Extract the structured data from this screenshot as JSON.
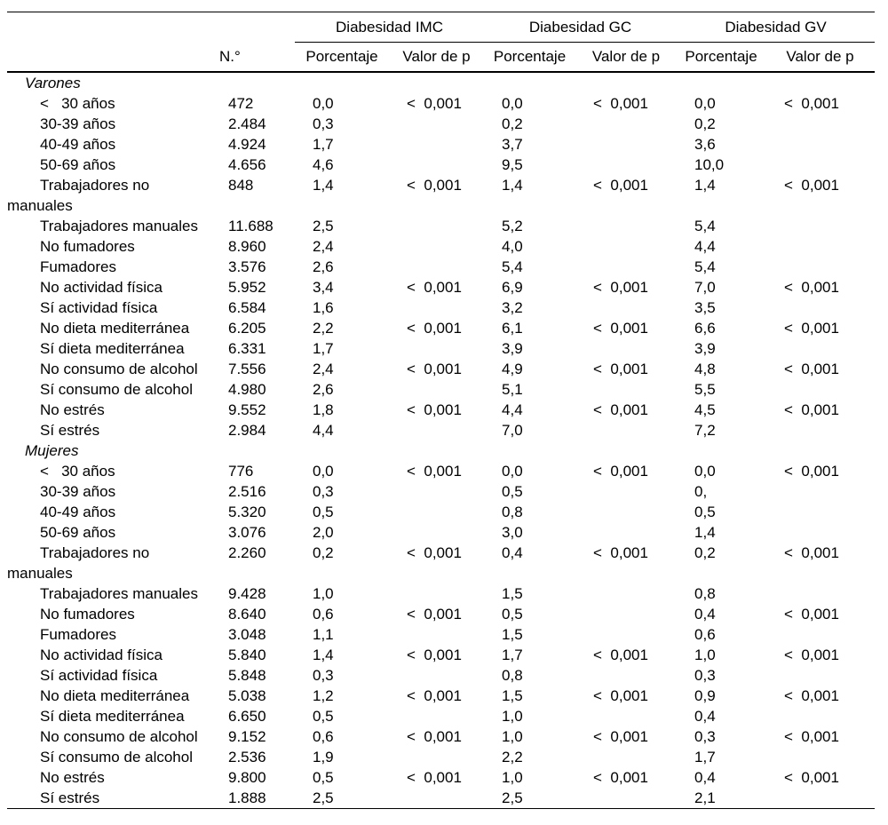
{
  "table": {
    "groups": [
      "Diabesidad IMC",
      "Diabesidad GC",
      "Diabesidad GV"
    ],
    "headers": {
      "n": "N.°",
      "pct": "Porcentaje",
      "p": "Valor de p"
    },
    "rows": [
      {
        "type": "section",
        "label": "Varones",
        "n": "",
        "imc_pct": "",
        "imc_p": "",
        "gc_pct": "",
        "gc_p": "",
        "gv_pct": "",
        "gv_p": ""
      },
      {
        "type": "item",
        "label": "<   30 años",
        "n": "472",
        "imc_pct": "0,0",
        "imc_p": "<  0,001",
        "gc_pct": "0,0",
        "gc_p": "<  0,001",
        "gv_pct": "0,0",
        "gv_p": "<  0,001"
      },
      {
        "type": "item",
        "label": "30-39 años",
        "n": "2.484",
        "imc_pct": "0,3",
        "imc_p": "",
        "gc_pct": "0,2",
        "gc_p": "",
        "gv_pct": "0,2",
        "gv_p": ""
      },
      {
        "type": "item",
        "label": "40-49 años",
        "n": "4.924",
        "imc_pct": "1,7",
        "imc_p": "",
        "gc_pct": "3,7",
        "gc_p": "",
        "gv_pct": "3,6",
        "gv_p": ""
      },
      {
        "type": "item",
        "label": "50-69 años",
        "n": "4.656",
        "imc_pct": "4,6",
        "imc_p": "",
        "gc_pct": "9,5",
        "gc_p": "",
        "gv_pct": "10,0",
        "gv_p": ""
      },
      {
        "type": "item",
        "label": "Trabajadores no manuales",
        "n": "848",
        "imc_pct": "1,4",
        "imc_p": "<  0,001",
        "gc_pct": "1,4",
        "gc_p": "<  0,001",
        "gv_pct": "1,4",
        "gv_p": "<  0,001"
      },
      {
        "type": "item",
        "label": "Trabajadores manuales",
        "n": "11.688",
        "imc_pct": "2,5",
        "imc_p": "",
        "gc_pct": "5,2",
        "gc_p": "",
        "gv_pct": "5,4",
        "gv_p": ""
      },
      {
        "type": "item",
        "label": "No fumadores",
        "n": "8.960",
        "imc_pct": "2,4",
        "imc_p": "",
        "gc_pct": "4,0",
        "gc_p": "",
        "gv_pct": "4,4",
        "gv_p": ""
      },
      {
        "type": "item",
        "label": "Fumadores",
        "n": "3.576",
        "imc_pct": "2,6",
        "imc_p": "",
        "gc_pct": "5,4",
        "gc_p": "",
        "gv_pct": "5,4",
        "gv_p": ""
      },
      {
        "type": "item",
        "label": "No actividad física",
        "n": "5.952",
        "imc_pct": "3,4",
        "imc_p": "<  0,001",
        "gc_pct": "6,9",
        "gc_p": "<  0,001",
        "gv_pct": "7,0",
        "gv_p": "<  0,001"
      },
      {
        "type": "item",
        "label": "Sí actividad física",
        "n": "6.584",
        "imc_pct": "1,6",
        "imc_p": "",
        "gc_pct": "3,2",
        "gc_p": "",
        "gv_pct": "3,5",
        "gv_p": ""
      },
      {
        "type": "item",
        "label": "No dieta mediterránea",
        "n": "6.205",
        "imc_pct": "2,2",
        "imc_p": "<  0,001",
        "gc_pct": "6,1",
        "gc_p": "<  0,001",
        "gv_pct": "6,6",
        "gv_p": "<  0,001"
      },
      {
        "type": "item",
        "label": "Sí dieta mediterránea",
        "n": "6.331",
        "imc_pct": "1,7",
        "imc_p": "",
        "gc_pct": "3,9",
        "gc_p": "",
        "gv_pct": "3,9",
        "gv_p": ""
      },
      {
        "type": "item",
        "label": "No consumo de alcohol",
        "n": "7.556",
        "imc_pct": "2,4",
        "imc_p": "<  0,001",
        "gc_pct": "4,9",
        "gc_p": "<  0,001",
        "gv_pct": "4,8",
        "gv_p": "<  0,001"
      },
      {
        "type": "item",
        "label": "Sí consumo de alcohol",
        "n": "4.980",
        "imc_pct": "2,6",
        "imc_p": "",
        "gc_pct": "5,1",
        "gc_p": "",
        "gv_pct": "5,5",
        "gv_p": ""
      },
      {
        "type": "item",
        "label": "No estrés",
        "n": "9.552",
        "imc_pct": "1,8",
        "imc_p": "<  0,001",
        "gc_pct": "4,4",
        "gc_p": "<  0,001",
        "gv_pct": "4,5",
        "gv_p": "<  0,001"
      },
      {
        "type": "item",
        "label": "Sí estrés",
        "n": "2.984",
        "imc_pct": "4,4",
        "imc_p": "",
        "gc_pct": "7,0",
        "gc_p": "",
        "gv_pct": "7,2",
        "gv_p": ""
      },
      {
        "type": "section",
        "label": "Mujeres",
        "n": "",
        "imc_pct": "",
        "imc_p": "",
        "gc_pct": "",
        "gc_p": "",
        "gv_pct": "",
        "gv_p": ""
      },
      {
        "type": "item",
        "label": "<   30 años",
        "n": "776",
        "imc_pct": "0,0",
        "imc_p": "<  0,001",
        "gc_pct": "0,0",
        "gc_p": "<  0,001",
        "gv_pct": "0,0",
        "gv_p": "<  0,001"
      },
      {
        "type": "item",
        "label": "30-39 años",
        "n": "2.516",
        "imc_pct": "0,3",
        "imc_p": "",
        "gc_pct": "0,5",
        "gc_p": "",
        "gv_pct": "0,",
        "gv_p": ""
      },
      {
        "type": "item",
        "label": "40-49 años",
        "n": "5.320",
        "imc_pct": "0,5",
        "imc_p": "",
        "gc_pct": "0,8",
        "gc_p": "",
        "gv_pct": "0,5",
        "gv_p": ""
      },
      {
        "type": "item",
        "label": "50-69 años",
        "n": "3.076",
        "imc_pct": "2,0",
        "imc_p": "",
        "gc_pct": "3,0",
        "gc_p": "",
        "gv_pct": "1,4",
        "gv_p": ""
      },
      {
        "type": "item",
        "label": "Trabajadores no manuales",
        "n": "2.260",
        "imc_pct": "0,2",
        "imc_p": "<  0,001",
        "gc_pct": "0,4",
        "gc_p": "<  0,001",
        "gv_pct": "0,2",
        "gv_p": "<  0,001"
      },
      {
        "type": "item",
        "label": "Trabajadores manuales",
        "n": "9.428",
        "imc_pct": "1,0",
        "imc_p": "",
        "gc_pct": "1,5",
        "gc_p": "",
        "gv_pct": "0,8",
        "gv_p": ""
      },
      {
        "type": "item",
        "label": "No fumadores",
        "n": "8.640",
        "imc_pct": "0,6",
        "imc_p": "<  0,001",
        "gc_pct": "0,5",
        "gc_p": "",
        "gv_pct": "0,4",
        "gv_p": "<  0,001"
      },
      {
        "type": "item",
        "label": "Fumadores",
        "n": "3.048",
        "imc_pct": "1,1",
        "imc_p": "",
        "gc_pct": "1,5",
        "gc_p": "",
        "gv_pct": "0,6",
        "gv_p": ""
      },
      {
        "type": "item",
        "label": "No actividad física",
        "n": "5.840",
        "imc_pct": "1,4",
        "imc_p": "<  0,001",
        "gc_pct": "1,7",
        "gc_p": "<  0,001",
        "gv_pct": "1,0",
        "gv_p": "<  0,001"
      },
      {
        "type": "item",
        "label": "Sí actividad física",
        "n": "5.848",
        "imc_pct": "0,3",
        "imc_p": "",
        "gc_pct": "0,8",
        "gc_p": "",
        "gv_pct": "0,3",
        "gv_p": ""
      },
      {
        "type": "item",
        "label": "No dieta mediterránea",
        "n": "5.038",
        "imc_pct": "1,2",
        "imc_p": "<  0,001",
        "gc_pct": "1,5",
        "gc_p": "<  0,001",
        "gv_pct": "0,9",
        "gv_p": "<  0,001"
      },
      {
        "type": "item",
        "label": "Sí dieta mediterránea",
        "n": "6.650",
        "imc_pct": "0,5",
        "imc_p": "",
        "gc_pct": "1,0",
        "gc_p": "",
        "gv_pct": "0,4",
        "gv_p": ""
      },
      {
        "type": "item",
        "label": "No consumo de alcohol",
        "n": "9.152",
        "imc_pct": "0,6",
        "imc_p": "<  0,001",
        "gc_pct": "1,0",
        "gc_p": "<  0,001",
        "gv_pct": "0,3",
        "gv_p": "<  0,001"
      },
      {
        "type": "item",
        "label": "Sí consumo de alcohol",
        "n": "2.536",
        "imc_pct": "1,9",
        "imc_p": "",
        "gc_pct": "2,2",
        "gc_p": "",
        "gv_pct": "1,7",
        "gv_p": ""
      },
      {
        "type": "item",
        "label": "No estrés",
        "n": "9.800",
        "imc_pct": "0,5",
        "imc_p": "<  0,001",
        "gc_pct": "1,0",
        "gc_p": "<  0,001",
        "gv_pct": "0,4",
        "gv_p": "<  0,001"
      },
      {
        "type": "item",
        "label": "Sí estrés",
        "n": "1.888",
        "imc_pct": "2,5",
        "imc_p": "",
        "gc_pct": "2,5",
        "gc_p": "",
        "gv_pct": "2,1",
        "gv_p": ""
      }
    ]
  },
  "colors": {
    "text": "#000000",
    "background": "#ffffff",
    "rule": "#000000"
  }
}
